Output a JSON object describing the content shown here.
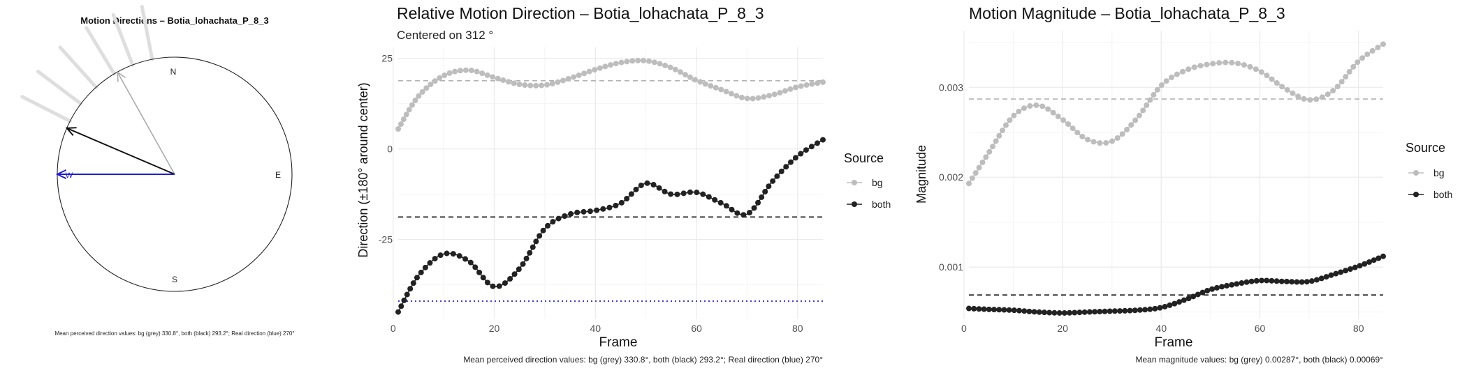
{
  "colors": {
    "bg": "#bdbdbd",
    "both": "#222222",
    "real": "#1f1fd0",
    "grid": "#ebebeb",
    "gridMinor": "#f4f4f4",
    "ray": "#dedede"
  },
  "compass": {
    "title": "Motion Directions – Botia_lohachata_P_8_3",
    "labels": {
      "n": "N",
      "e": "E",
      "s": "S",
      "w": "W"
    },
    "footnote": "Mean perceived direction values: bg (grey) 330.8°, both (black) 293.2°; Real direction (blue) 270°",
    "arrows": [
      {
        "name": "bg",
        "angle_deg": 330.8
      },
      {
        "name": "both",
        "angle_deg": 293.2
      },
      {
        "name": "real",
        "angle_deg": 270
      }
    ],
    "rays_deg": [
      297,
      307,
      318,
      329,
      339,
      349
    ]
  },
  "legend": {
    "title": "Source",
    "items": [
      {
        "key": "bg",
        "label": "bg"
      },
      {
        "key": "both",
        "label": "both"
      }
    ]
  },
  "chart_data": [
    {
      "type": "line",
      "title": "Relative Motion Direction – Botia_lohachata_P_8_3",
      "subtitle": "Centered on  312 °",
      "xlabel": "Frame",
      "ylabel": "Direction (±180° around center)",
      "xlim": [
        1,
        85
      ],
      "ylim": [
        -47,
        28
      ],
      "xticks": [
        0,
        20,
        40,
        60,
        80
      ],
      "yticks": [
        -25,
        0,
        25
      ],
      "caption": "Mean perceived direction values: bg (grey) 330.8°, both (black) 293.2°; Real direction (blue) 270°",
      "hlines": [
        {
          "series": "bg",
          "y": 18.8,
          "style": "dashed"
        },
        {
          "series": "both",
          "y": -18.8,
          "style": "dashed"
        },
        {
          "series": "real",
          "y": -42,
          "style": "dotted"
        }
      ],
      "x": [
        1,
        5,
        10,
        15,
        20,
        25,
        30,
        35,
        40,
        45,
        50,
        55,
        60,
        65,
        70,
        75,
        80,
        85
      ],
      "series": [
        {
          "name": "bg",
          "values": [
            5.5,
            14.5,
            20.2,
            21.7,
            19.7,
            17.8,
            17.6,
            19.5,
            21.9,
            23.8,
            24.3,
            22.4,
            18.9,
            16.3,
            13.9,
            14.9,
            17.1,
            18.4
          ]
        },
        {
          "name": "both",
          "values": [
            -45,
            -35,
            -29,
            -31,
            -38,
            -33,
            -22,
            -18,
            -17,
            -15,
            -9.5,
            -12.5,
            -12,
            -15,
            -18,
            -9,
            -2,
            2.5
          ]
        }
      ]
    },
    {
      "type": "line",
      "title": "Motion Magnitude – Botia_lohachata_P_8_3",
      "xlabel": "Frame",
      "ylabel": "Magnitude",
      "xlim": [
        1,
        85
      ],
      "ylim": [
        0.00042,
        0.00363
      ],
      "xticks": [
        0,
        20,
        40,
        60,
        80
      ],
      "yticks": [
        0.001,
        0.002,
        0.003
      ],
      "ytick_labels": [
        "0.001",
        "0.002",
        "0.003"
      ],
      "caption": "Mean magnitude values: bg (grey) 0.00287°, both (black) 0.00069°",
      "hlines": [
        {
          "series": "bg",
          "y": 0.00287,
          "style": "dashed"
        },
        {
          "series": "both",
          "y": 0.00069,
          "style": "dashed"
        }
      ],
      "x": [
        1,
        5,
        10,
        15,
        20,
        25,
        30,
        35,
        40,
        45,
        50,
        55,
        60,
        65,
        70,
        75,
        80,
        85
      ],
      "series": [
        {
          "name": "bg",
          "values": [
            0.00193,
            0.00227,
            0.00268,
            0.0028,
            0.00264,
            0.00242,
            0.0024,
            0.00265,
            0.00302,
            0.00319,
            0.00326,
            0.00327,
            0.00318,
            0.00299,
            0.00286,
            0.00297,
            0.00329,
            0.00348
          ]
        },
        {
          "name": "both",
          "values": [
            0.00054,
            0.00053,
            0.00052,
            0.0005,
            0.00049,
            0.0005,
            0.00051,
            0.00052,
            0.00055,
            0.00064,
            0.00075,
            0.00081,
            0.00085,
            0.00084,
            0.00084,
            0.00092,
            0.00101,
            0.00112
          ]
        }
      ]
    }
  ]
}
